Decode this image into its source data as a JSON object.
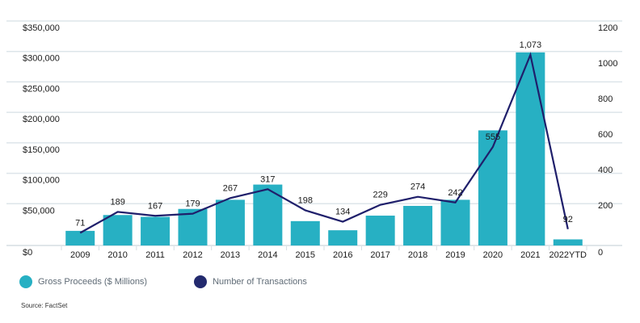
{
  "chart_data": {
    "type": "bar+line",
    "title": "",
    "categories": [
      "2009",
      "2010",
      "2011",
      "2012",
      "2013",
      "2014",
      "2015",
      "2016",
      "2017",
      "2018",
      "2019",
      "2020",
      "2021",
      "2022YTD"
    ],
    "series": [
      {
        "name": "Gross Proceeds ($ Millions)",
        "type": "bar",
        "axis": "left",
        "color": "#27b0c3",
        "values": [
          24000,
          50000,
          47000,
          60000,
          75000,
          100000,
          40000,
          25000,
          49000,
          65000,
          75000,
          189000,
          317000,
          10000
        ]
      },
      {
        "name": "Number of Transactions",
        "type": "line",
        "axis": "right",
        "color": "#1f1f6b",
        "values": [
          71,
          189,
          167,
          179,
          267,
          317,
          198,
          134,
          229,
          274,
          242,
          555,
          1073,
          92
        ],
        "data_labels": [
          "71",
          "189",
          "167",
          "179",
          "267",
          "317",
          "198",
          "134",
          "229",
          "274",
          "242",
          "555",
          "1,073",
          "92"
        ]
      }
    ],
    "y_left": {
      "ylim": [
        0,
        350000
      ],
      "ticks": [
        0,
        50000,
        100000,
        150000,
        200000,
        250000,
        300000,
        350000
      ],
      "tick_labels": [
        "$0",
        "$50,000",
        "$100,000",
        "$150,000",
        "$200,000",
        "$250,000",
        "$300,000",
        "$350,000"
      ]
    },
    "y_right": {
      "ylim": [
        0,
        1200
      ],
      "ticks": [
        0,
        200,
        400,
        600,
        800,
        1000,
        1200
      ],
      "tick_labels": [
        "0",
        "200",
        "400",
        "600",
        "800",
        "1000",
        "1200"
      ]
    },
    "grid": true,
    "legend_position": "bottom-left"
  },
  "legend": [
    {
      "label": "Gross Proceeds ($ Millions)",
      "color": "#27b0c3"
    },
    {
      "label": "Number of Transactions",
      "color": "#1f1f6b"
    }
  ],
  "source": "Source: FactSet"
}
